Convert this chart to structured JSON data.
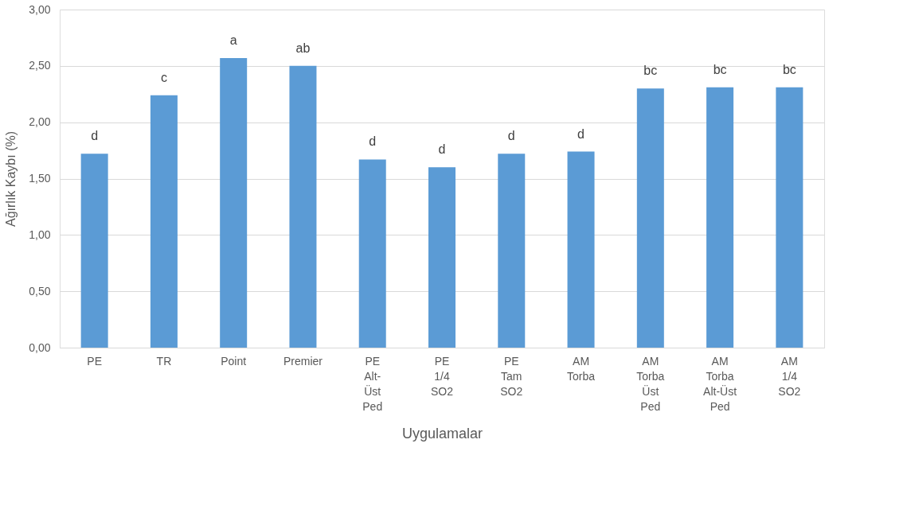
{
  "chart_data": {
    "type": "bar",
    "xlabel": "Uygulamalar",
    "ylabel": "Ağırlık Kaybı (%)",
    "categories": [
      "PE",
      "TR",
      "Point",
      "Premier",
      "PE Alt- Üst Ped",
      "PE 1/4 SO2",
      "PE Tam SO2",
      "AM Torba",
      "AM Torba Üst Ped",
      "AM Torba Alt-Üst Ped",
      "AM 1/4 SO2"
    ],
    "values": [
      1.72,
      2.24,
      2.57,
      2.5,
      1.67,
      1.6,
      1.72,
      1.74,
      2.3,
      2.31,
      2.31
    ],
    "color": "#5b9bd5",
    "ylim": [
      0,
      3
    ],
    "yticks": [
      {
        "value": 0,
        "label": "0,00"
      },
      {
        "value": 0.5,
        "label": "0,50"
      },
      {
        "value": 1,
        "label": "1,00"
      },
      {
        "value": 1.5,
        "label": "1,50"
      },
      {
        "value": 2,
        "label": "2,00"
      },
      {
        "value": 2.5,
        "label": "2,50"
      },
      {
        "value": 3,
        "label": "3,00"
      }
    ],
    "grid": "y",
    "annotations": [
      {
        "text": "d",
        "x": "PE",
        "y": 1.72
      },
      {
        "text": "c",
        "x": "TR",
        "y": 2.24
      },
      {
        "text": "a",
        "x": "Point",
        "y": 2.57
      },
      {
        "text": "ab",
        "x": "Premier",
        "y": 2.5
      },
      {
        "text": "d",
        "x": "PE Alt- Üst Ped",
        "y": 1.67
      },
      {
        "text": "d",
        "x": "PE 1/4 SO2",
        "y": 1.6
      },
      {
        "text": "d",
        "x": "PE Tam SO2",
        "y": 1.72
      },
      {
        "text": "d",
        "x": "AM Torba",
        "y": 1.74
      },
      {
        "text": "bc",
        "x": "AM Torba Üst Ped",
        "y": 2.3
      },
      {
        "text": "bc",
        "x": "AM Torba Alt-Üst Ped",
        "y": 2.31
      },
      {
        "text": "bc",
        "x": "AM 1/4 SO2",
        "y": 2.31
      }
    ]
  }
}
